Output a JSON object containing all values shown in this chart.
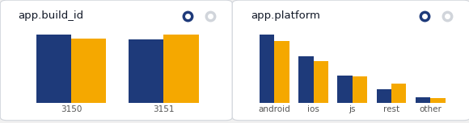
{
  "panel1": {
    "title": "app.build_id",
    "categories": [
      "3150",
      "3151"
    ],
    "blue_values": [
      0.93,
      0.87
    ],
    "orange_values": [
      0.88,
      0.93
    ],
    "blue_color": "#1e3a7a",
    "orange_color": "#f5a800",
    "bg_color": "#ffffff",
    "border_color": "#d1d5db"
  },
  "panel2": {
    "title": "app.platform",
    "categories": [
      "android",
      "ios",
      "js",
      "rest",
      "other"
    ],
    "blue_values": [
      1.0,
      0.68,
      0.4,
      0.2,
      0.09
    ],
    "orange_values": [
      0.91,
      0.62,
      0.39,
      0.28,
      0.07
    ],
    "blue_color": "#1e3a7a",
    "orange_color": "#f5a800",
    "bg_color": "#ffffff",
    "border_color": "#d1d5db"
  },
  "icon_blue": "#1e3a7a",
  "icon_gray": "#d1d5db",
  "fig_bg": "#f0f0f0",
  "title_fontsize": 9.5,
  "label_fontsize": 7.5
}
